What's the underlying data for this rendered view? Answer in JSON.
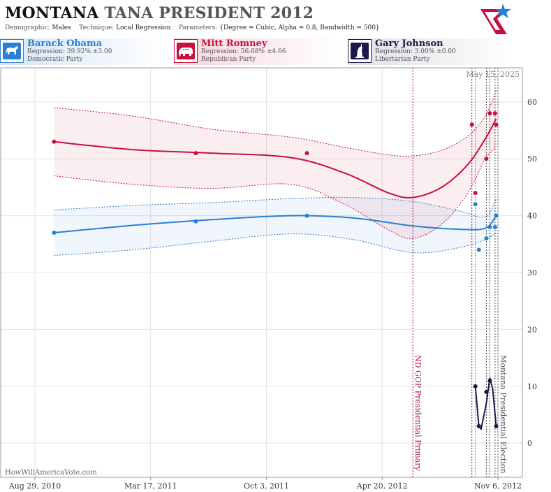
{
  "header": {
    "title_state": "MONTANA",
    "title_rest": "TANA PRESIDENT 2012",
    "demographic_label": "Demographic:",
    "demographic_value": "Males",
    "technique_label": "Technique:",
    "technique_value": "Local Regression",
    "parameters_label": "Parameters:",
    "parameters_value": "{Degree = Cubic, Alpha = 0.8, Bandwidth = 500}"
  },
  "candidates": [
    {
      "name": "Barack Obama",
      "regression": "Regression: 39.92% ±3.00",
      "party": "Democratic Party",
      "color": "#2a7fd4",
      "icon": "donkey-icon"
    },
    {
      "name": "Mitt Romney",
      "regression": "Regression: 56.68% ±4.66",
      "party": "Republican Party",
      "color": "#c8103e",
      "icon": "elephant-icon"
    },
    {
      "name": "Gary Johnson",
      "regression": "Regression: 3.00% ±0.00",
      "party": "Libertarian Party",
      "color": "#1c1a4a",
      "icon": "liberty-statue-icon"
    }
  ],
  "watermark": "HowWillAmericaVote.com",
  "date_label": "May 15, 2025",
  "chart_data": {
    "type": "line",
    "x_ticks": [
      "Aug 29, 2010",
      "Mar 17, 2011",
      "Oct 3, 2011",
      "Apr 20, 2012",
      "Nov 6, 2012"
    ],
    "y_ticks": [
      0,
      10,
      20,
      30,
      40,
      50,
      60
    ],
    "ylim": [
      -6,
      66
    ],
    "grid": true,
    "annotations": [
      {
        "label": "ND GOP Presidential Primary",
        "date": "Jun 12, 2012",
        "color": "#a0155a"
      },
      {
        "label": "Montana Presidential Election",
        "date": "Nov 6, 2012",
        "color": "#555555"
      }
    ],
    "series": [
      {
        "name": "Barack Obama",
        "points": [
          [
            "Oct 1, 2010",
            37
          ],
          [
            "Jun 3, 2011",
            39
          ],
          [
            "Dec 12, 2011",
            40
          ],
          [
            "Sep 28, 2012",
            42
          ],
          [
            "Oct 4, 2012",
            34
          ],
          [
            "Oct 17, 2012",
            36
          ],
          [
            "Oct 23, 2012",
            38
          ],
          [
            "Nov 1, 2012",
            38
          ],
          [
            "Nov 3, 2012",
            40
          ]
        ],
        "trend": [
          [
            "Oct 1, 2010",
            37.0
          ],
          [
            "Feb 15, 2011",
            38.3
          ],
          [
            "Jul 1, 2011",
            39.3
          ],
          [
            "Nov 15, 2011",
            40.0
          ],
          [
            "Mar 1, 2012",
            39.6
          ],
          [
            "Jun 12, 2012",
            38.2
          ],
          [
            "Sep 1, 2012",
            37.6
          ],
          [
            "Oct 15, 2012",
            37.8
          ],
          [
            "Nov 3, 2012",
            40.0
          ]
        ],
        "band_upper": [
          [
            "Oct 1, 2010",
            41.0
          ],
          [
            "Feb 15, 2011",
            41.8
          ],
          [
            "Jul 1, 2011",
            42.3
          ],
          [
            "Nov 15, 2011",
            43.0
          ],
          [
            "Mar 1, 2012",
            43.2
          ],
          [
            "Jun 12, 2012",
            42.5
          ],
          [
            "Sep 1, 2012",
            40.8
          ],
          [
            "Oct 15, 2012",
            39.8
          ],
          [
            "Nov 3, 2012",
            43.0
          ]
        ],
        "band_lower": [
          [
            "Oct 1, 2010",
            33.0
          ],
          [
            "Feb 15, 2011",
            34.0
          ],
          [
            "Jul 1, 2011",
            35.5
          ],
          [
            "Nov 15, 2011",
            36.8
          ],
          [
            "Mar 1, 2012",
            35.8
          ],
          [
            "Jun 12, 2012",
            33.5
          ],
          [
            "Sep 1, 2012",
            34.4
          ],
          [
            "Oct 15, 2012",
            35.8
          ],
          [
            "Nov 3, 2012",
            37.0
          ]
        ]
      },
      {
        "name": "Mitt Romney",
        "points": [
          [
            "Oct 1, 2010",
            53
          ],
          [
            "Jun 3, 2011",
            51
          ],
          [
            "Dec 12, 2011",
            51
          ],
          [
            "Sep 22, 2012",
            56
          ],
          [
            "Sep 28, 2012",
            44
          ],
          [
            "Oct 17, 2012",
            50
          ],
          [
            "Oct 23, 2012",
            58
          ],
          [
            "Nov 1, 2012",
            58
          ],
          [
            "Nov 3, 2012",
            56
          ]
        ],
        "trend": [
          [
            "Oct 1, 2010",
            53.0
          ],
          [
            "Feb 15, 2011",
            51.6
          ],
          [
            "Jul 1, 2011",
            51.0
          ],
          [
            "Nov 15, 2011",
            50.2
          ],
          [
            "Feb 15, 2012",
            47.5
          ],
          [
            "May 1, 2012",
            44.0
          ],
          [
            "Jun 12, 2012",
            43.2
          ],
          [
            "Aug 1, 2012",
            45.0
          ],
          [
            "Sep 15, 2012",
            49.0
          ],
          [
            "Oct 15, 2012",
            53.5
          ],
          [
            "Nov 3, 2012",
            57.0
          ]
        ],
        "band_upper": [
          [
            "Oct 1, 2010",
            59.0
          ],
          [
            "Feb 15, 2011",
            57.5
          ],
          [
            "Jul 1, 2011",
            55.2
          ],
          [
            "Nov 15, 2011",
            53.8
          ],
          [
            "Feb 15, 2012",
            52.0
          ],
          [
            "May 1, 2012",
            50.7
          ],
          [
            "Jun 12, 2012",
            50.5
          ],
          [
            "Aug 1, 2012",
            51.5
          ],
          [
            "Sep 15, 2012",
            54.0
          ],
          [
            "Oct 15, 2012",
            57.5
          ],
          [
            "Nov 3, 2012",
            62.0
          ]
        ],
        "band_lower": [
          [
            "Oct 1, 2010",
            47.0
          ],
          [
            "Feb 15, 2011",
            45.5
          ],
          [
            "Jul 1, 2011",
            44.8
          ],
          [
            "Nov 15, 2011",
            45.5
          ],
          [
            "Feb 15, 2012",
            42.0
          ],
          [
            "May 1, 2012",
            37.5
          ],
          [
            "Jun 12, 2012",
            36.0
          ],
          [
            "Aug 1, 2012",
            38.5
          ],
          [
            "Sep 15, 2012",
            44.0
          ],
          [
            "Oct 15, 2012",
            50.0
          ],
          [
            "Nov 3, 2012",
            52.0
          ]
        ]
      },
      {
        "name": "Gary Johnson",
        "points": [
          [
            "Sep 28, 2012",
            10
          ],
          [
            "Oct 4, 2012",
            3
          ],
          [
            "Oct 17, 2012",
            9
          ],
          [
            "Oct 23, 2012",
            11
          ],
          [
            "Nov 3, 2012",
            3
          ]
        ],
        "trend": [
          [
            "Sep 28, 2012",
            10.0
          ],
          [
            "Oct 4, 2012",
            3.0
          ],
          [
            "Oct 8, 2012",
            2.5
          ],
          [
            "Oct 17, 2012",
            7.0
          ],
          [
            "Oct 23, 2012",
            11.5
          ],
          [
            "Oct 28, 2012",
            9.5
          ],
          [
            "Nov 3, 2012",
            3.0
          ]
        ]
      }
    ]
  }
}
